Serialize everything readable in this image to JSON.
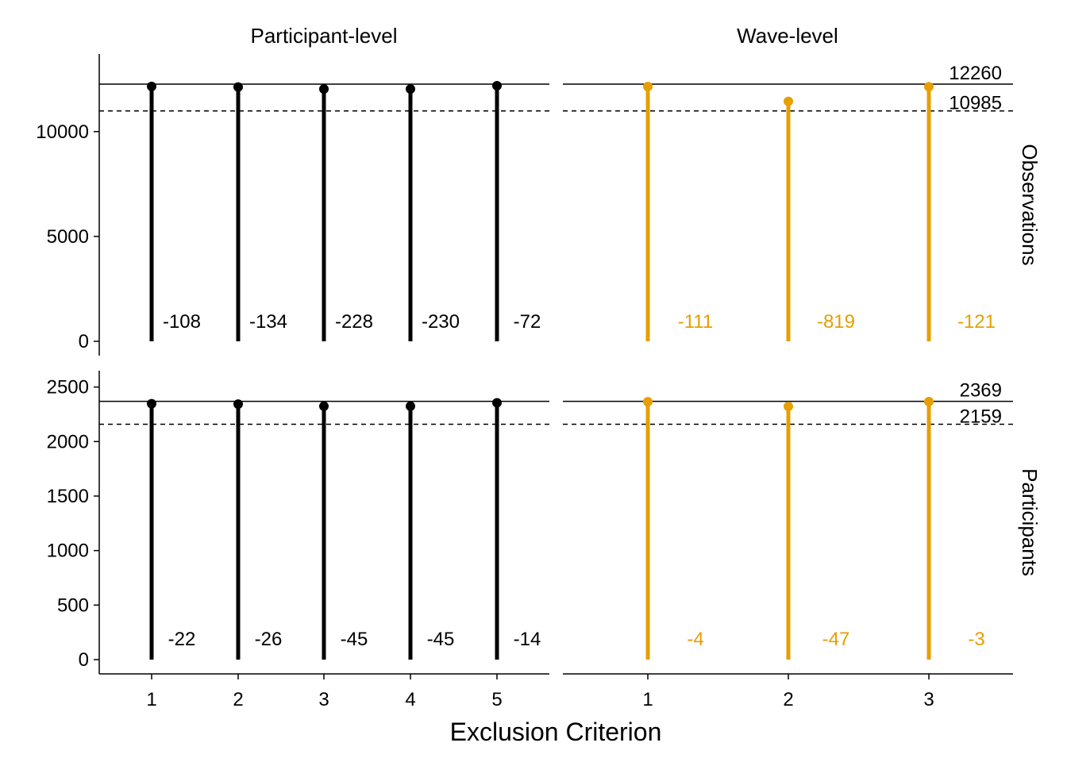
{
  "chart_data": {
    "type": "lollipop",
    "xlabel": "Exclusion Criterion",
    "columns": [
      "Participant-level",
      "Wave-level"
    ],
    "rows": [
      "Observations",
      "Participants"
    ],
    "colors": {
      "Participant-level": "#000000",
      "Wave-level": "#E69F00"
    },
    "panels": [
      {
        "column": "Participant-level",
        "row": "Observations",
        "x": [
          1,
          2,
          3,
          4,
          5
        ],
        "values": [
          12152,
          12126,
          12032,
          12030,
          12188
        ],
        "labels": [
          "-108",
          "-134",
          "-228",
          "-230",
          "-72"
        ],
        "ref_solid": 12260,
        "ref_dashed": 10985,
        "ylim": [
          0,
          13700
        ],
        "yticks": [
          0,
          5000,
          10000
        ]
      },
      {
        "column": "Wave-level",
        "row": "Observations",
        "x": [
          1,
          2,
          3
        ],
        "values": [
          12149,
          11441,
          12139
        ],
        "labels": [
          "-111",
          "-819",
          "-121"
        ],
        "ref_solid": 12260,
        "ref_dashed": 10985,
        "ref_labels": [
          "12260",
          "10985"
        ],
        "ylim": [
          0,
          13700
        ],
        "yticks": [
          0,
          5000,
          10000
        ]
      },
      {
        "column": "Participant-level",
        "row": "Participants",
        "x": [
          1,
          2,
          3,
          4,
          5
        ],
        "values": [
          2347,
          2343,
          2324,
          2324,
          2355
        ],
        "labels": [
          "-22",
          "-26",
          "-45",
          "-45",
          "-14"
        ],
        "ref_solid": 2369,
        "ref_dashed": 2159,
        "ylim": [
          0,
          2650
        ],
        "yticks": [
          0,
          500,
          1000,
          1500,
          2000,
          2500
        ]
      },
      {
        "column": "Wave-level",
        "row": "Participants",
        "x": [
          1,
          2,
          3
        ],
        "values": [
          2365,
          2322,
          2366
        ],
        "labels": [
          "-4",
          "-47",
          "-3"
        ],
        "ref_solid": 2369,
        "ref_dashed": 2159,
        "ref_labels": [
          "2369",
          "2159"
        ],
        "ylim": [
          0,
          2650
        ],
        "yticks": [
          0,
          500,
          1000,
          1500,
          2000,
          2500
        ]
      }
    ]
  }
}
